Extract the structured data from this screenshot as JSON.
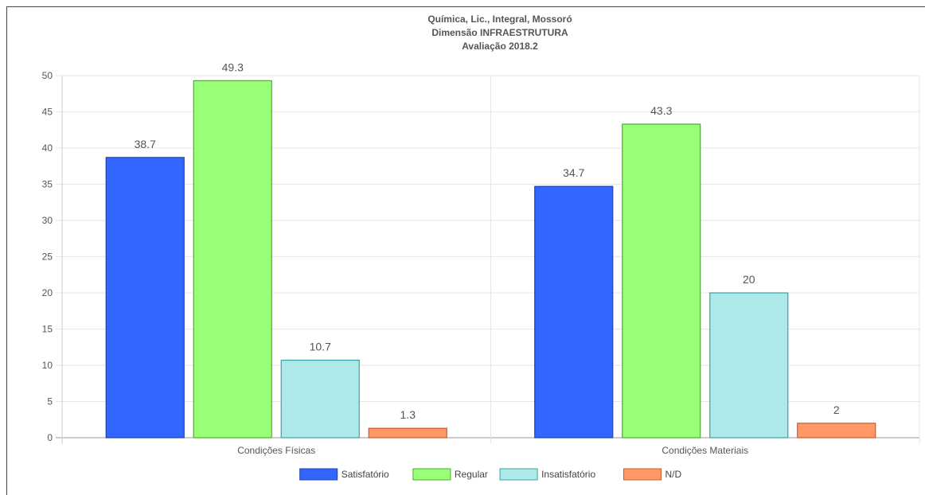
{
  "chart_data": {
    "type": "bar",
    "title": [
      "Química, Lic., Integral, Mossoró",
      "Dimensão INFRAESTRUTURA",
      "Avaliação 2018.2"
    ],
    "categories": [
      "Condições Físicas",
      "Condições Materiais"
    ],
    "series": [
      {
        "name": "Satisfatório",
        "values": [
          38.7,
          34.7
        ],
        "color": "#3366ff",
        "border": "#1f3fb8"
      },
      {
        "name": "Regular",
        "values": [
          49.3,
          43.3
        ],
        "color": "#99ff77",
        "border": "#44b22a"
      },
      {
        "name": "Insatisfatório",
        "values": [
          10.7,
          20
        ],
        "color": "#aee9e9",
        "border": "#3aa0a8"
      },
      {
        "name": "N/D",
        "values": [
          1.3,
          2
        ],
        "color": "#ff9966",
        "border": "#d05a2a"
      }
    ],
    "ylim": [
      0,
      50
    ],
    "yticks": [
      0,
      5,
      10,
      15,
      20,
      25,
      30,
      35,
      40,
      45,
      50
    ],
    "grid": true,
    "legend": "bottom"
  }
}
